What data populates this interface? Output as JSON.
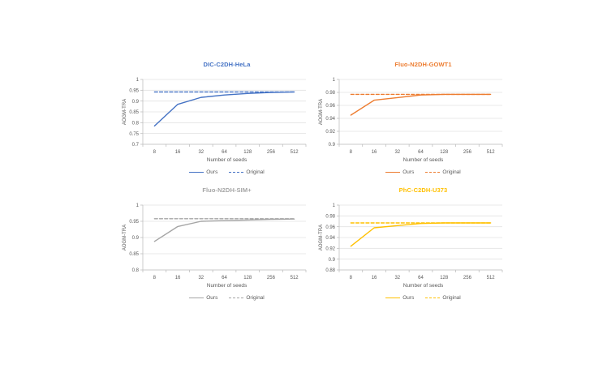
{
  "page": {
    "background": "#ffffff"
  },
  "colors": {
    "axis": "#BFBFBF",
    "gridline": "#E2E2E2",
    "text": "#595959"
  },
  "chart_data": [
    {
      "type": "line",
      "title": "DIC-C2DH-HeLa",
      "color": "#4472C4",
      "xlabel": "Number of seeds",
      "ylabel": "AOGM-TRA",
      "categories": [
        "8",
        "16",
        "32",
        "64",
        "128",
        "256",
        "512"
      ],
      "ylim": [
        0.7,
        1.0
      ],
      "yticks": [
        "1",
        "0.95",
        "0.9",
        "0.85",
        "0.8",
        "0.75",
        "0.7"
      ],
      "grid": true,
      "legend_position": "bottom",
      "series": [
        {
          "name": "Ours",
          "style": "solid",
          "values": [
            0.785,
            0.885,
            0.917,
            0.928,
            0.935,
            0.94,
            0.942
          ]
        },
        {
          "name": "Original",
          "style": "dashed",
          "values": [
            0.942,
            0.942,
            0.942,
            0.942,
            0.942,
            0.942,
            0.942
          ]
        }
      ]
    },
    {
      "type": "line",
      "title": "Fluo-N2DH-GOWT1",
      "color": "#ED7D31",
      "xlabel": "Number of seeds",
      "ylabel": "AOGM-TRA",
      "categories": [
        "8",
        "16",
        "32",
        "64",
        "128",
        "256",
        "512"
      ],
      "ylim": [
        0.9,
        1.0
      ],
      "yticks": [
        "1",
        "0.98",
        "0.96",
        "0.94",
        "0.92",
        "0.9"
      ],
      "grid": true,
      "legend_position": "bottom",
      "series": [
        {
          "name": "Ours",
          "style": "solid",
          "values": [
            0.945,
            0.968,
            0.972,
            0.976,
            0.977,
            0.977,
            0.977
          ]
        },
        {
          "name": "Original",
          "style": "dashed",
          "values": [
            0.977,
            0.977,
            0.977,
            0.977,
            0.977,
            0.977,
            0.977
          ]
        }
      ]
    },
    {
      "type": "line",
      "title": "Fluo-N2DH-SIM+",
      "color": "#A5A5A5",
      "xlabel": "Number of seeds",
      "ylabel": "AOGM-TRA",
      "categories": [
        "8",
        "16",
        "32",
        "64",
        "128",
        "256",
        "512"
      ],
      "ylim": [
        0.8,
        1.0
      ],
      "yticks": [
        "1",
        "0.95",
        "0.9",
        "0.85",
        "0.8"
      ],
      "grid": true,
      "legend_position": "bottom",
      "series": [
        {
          "name": "Ours",
          "style": "solid",
          "values": [
            0.888,
            0.934,
            0.95,
            0.952,
            0.954,
            0.956,
            0.957
          ]
        },
        {
          "name": "Original",
          "style": "dashed",
          "values": [
            0.958,
            0.958,
            0.958,
            0.958,
            0.958,
            0.958,
            0.958
          ]
        }
      ]
    },
    {
      "type": "line",
      "title": "PhC-C2DH-U373",
      "color": "#FFC000",
      "xlabel": "Number of seeds",
      "ylabel": "AOGM-TRA",
      "categories": [
        "8",
        "16",
        "32",
        "64",
        "128",
        "256",
        "512"
      ],
      "ylim": [
        0.88,
        1.0
      ],
      "yticks": [
        "1",
        "0.98",
        "0.96",
        "0.94",
        "0.92",
        "0.9",
        "0.88"
      ],
      "grid": true,
      "legend_position": "bottom",
      "series": [
        {
          "name": "Ours",
          "style": "solid",
          "values": [
            0.924,
            0.958,
            0.962,
            0.966,
            0.967,
            0.967,
            0.967
          ]
        },
        {
          "name": "Original",
          "style": "dashed",
          "values": [
            0.967,
            0.967,
            0.967,
            0.967,
            0.967,
            0.967,
            0.967
          ]
        }
      ]
    }
  ]
}
